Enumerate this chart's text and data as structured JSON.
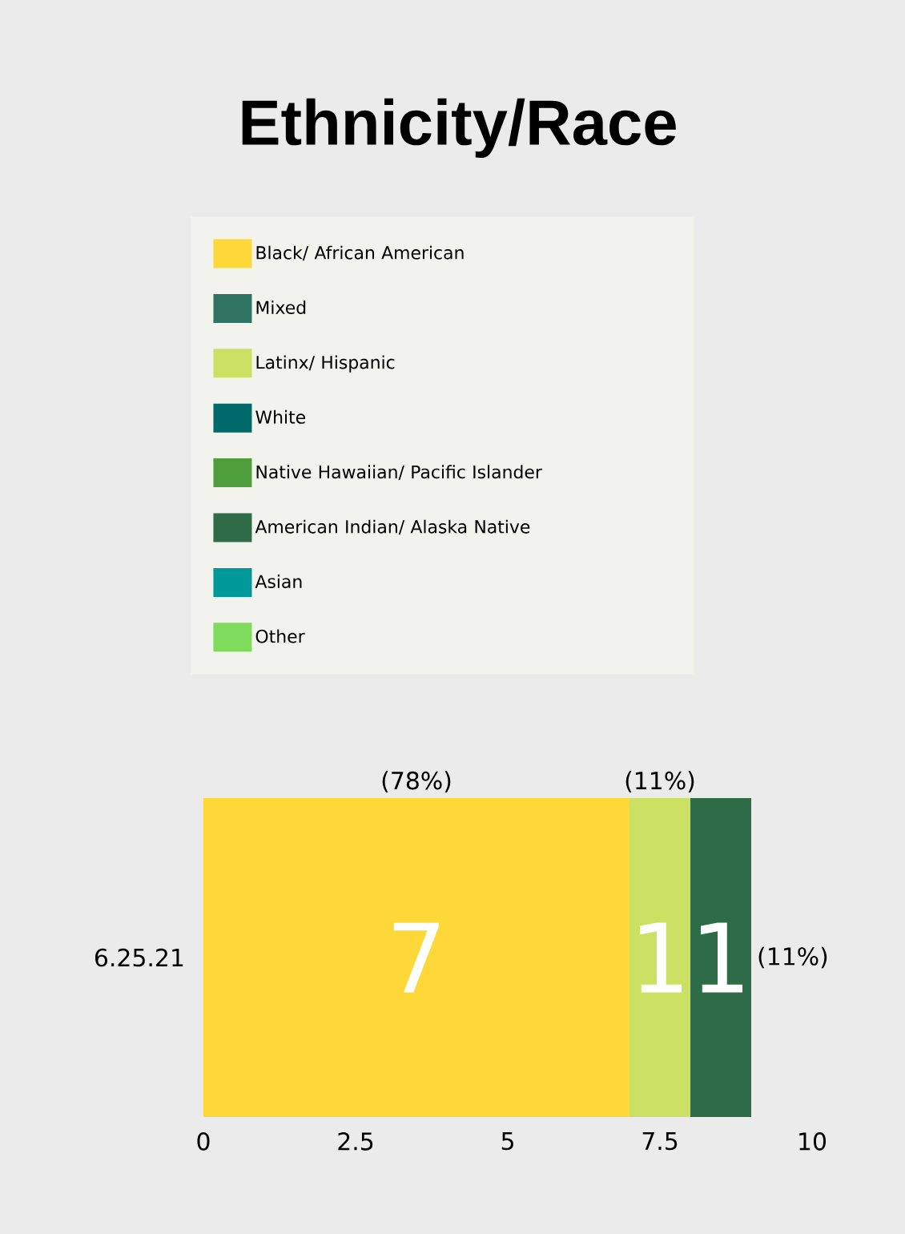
{
  "chart_data": {
    "type": "bar",
    "orientation": "horizontal",
    "stacked": true,
    "title": "Ethnicity/Race",
    "categories": [
      "6.25.21"
    ],
    "series": [
      {
        "name": "Black/ African American",
        "color": "#fed839",
        "values": [
          7
        ],
        "value_labels": [
          "7"
        ]
      },
      {
        "name": "Mixed",
        "color": "#2f7460",
        "values": [
          0
        ],
        "value_labels": [
          null
        ]
      },
      {
        "name": "Latinx/ Hispanic",
        "color": "#cce164",
        "values": [
          1
        ],
        "value_labels": [
          "1"
        ]
      },
      {
        "name": "White",
        "color": "#006a6a",
        "values": [
          0
        ],
        "value_labels": [
          null
        ]
      },
      {
        "name": "Native Hawaiian/ Pacific Islander",
        "color": "#4e9e3b",
        "values": [
          0
        ],
        "value_labels": [
          null
        ]
      },
      {
        "name": "American Indian/ Alaska Native",
        "color": "#2e6b47",
        "values": [
          1
        ],
        "value_labels": [
          "1"
        ]
      },
      {
        "name": "Asian",
        "color": "#00999a",
        "values": [
          0
        ],
        "value_labels": [
          null
        ]
      },
      {
        "name": "Other",
        "color": "#7fdb5c",
        "values": [
          0
        ],
        "value_labels": [
          null
        ]
      }
    ],
    "annotations": [
      "(78%)",
      "(11%)",
      "(11%)"
    ],
    "legend": "top",
    "xlim": [
      0,
      10
    ],
    "xticks": [
      0,
      2.5,
      5,
      7.5,
      10
    ]
  }
}
